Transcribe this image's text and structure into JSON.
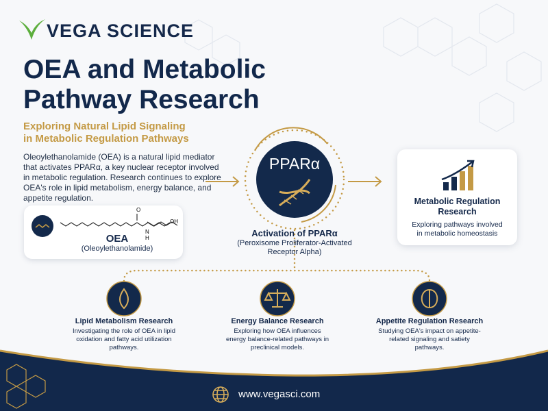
{
  "brand": "Vega Science",
  "header": {
    "title": "OEA and Metabolic Pathway Research",
    "subtitle": "Exploring Natural Lipid Signaling in Metabolic Regulation Pathways"
  },
  "intro": "Oleoylethanolamide (OEA) is a natural lipid mediator that activates PPARα, a key nuclear receptor involved in metabolic regulation. Research continues to explore OEA's role in lipid metabolism, energy balance, and appetite regulation.",
  "molecule": {
    "name": "OEA",
    "full_name": "(Oleoylethanolamide)",
    "atom_o": "O",
    "atom_n": "N",
    "atom_h": "H",
    "atom_oh": "OH"
  },
  "receptor": {
    "badge": "PPARα",
    "title": "Activation of PPARα",
    "subtitle": "(Peroxisome Proliferator-Activated Receptor Alpha)"
  },
  "outcome": {
    "title": "Metabolic Regulation Research",
    "text": "Exploring pathways involved in metabolic homeostasis"
  },
  "areas": [
    {
      "title": "Lipid Metabolism Research",
      "text": "Investigating the role of OEA in lipid oxidation and fatty acid utilization pathways."
    },
    {
      "title": "Energy Balance Research",
      "text": "Exploring how OEA influences energy balance-related pathways in preclinical models."
    },
    {
      "title": "Appetite Regulation Research",
      "text": "Studying OEA's impact on appetite-related signaling and satiety pathways."
    }
  ],
  "footer": {
    "website": "www.vegasci.com"
  }
}
